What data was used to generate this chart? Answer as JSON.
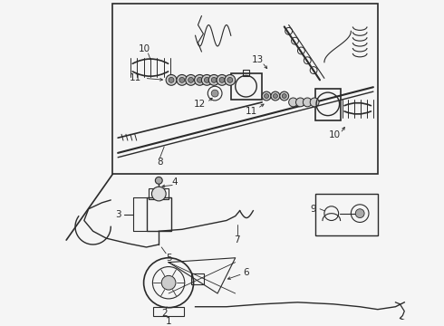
{
  "bg_color": "#f5f5f5",
  "line_color": "#2a2a2a",
  "fig_width": 4.9,
  "fig_height": 3.6,
  "dpi": 100
}
